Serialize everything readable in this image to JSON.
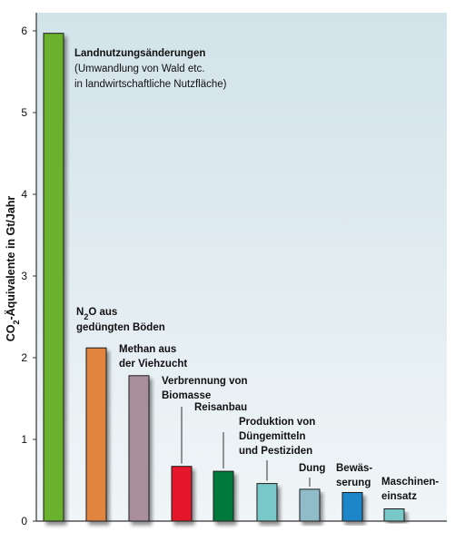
{
  "chart_data": {
    "type": "bar",
    "ylabel": "CO2-Äquivalente in Gt/Jahr",
    "ylim": [
      0,
      6
    ],
    "yticks": [
      "0",
      "1",
      "2",
      "3",
      "4",
      "5",
      "6"
    ],
    "grid": false,
    "legend": "none",
    "categories": [
      "Landnutzungsänderungen (Umwandlung von Wald etc. in landwirtschaftliche Nutzfläche)",
      "N2O aus gedüngten Böden",
      "Methan aus der Viehzucht",
      "Verbrennung von Biomasse",
      "Reisanbau",
      "Produktion von Düngemitteln und Pestiziden",
      "Dung",
      "Bewässerung",
      "Maschineneinsatz"
    ],
    "values": [
      5.97,
      2.12,
      1.78,
      0.67,
      0.61,
      0.46,
      0.39,
      0.35,
      0.15
    ],
    "colors": [
      "#6bb22e",
      "#e0843f",
      "#a88f9b",
      "#e5132c",
      "#007a3b",
      "#79c8c9",
      "#8fbcc8",
      "#1e86c9",
      "#79c8c9"
    ],
    "labels": [
      {
        "lines": [
          "Landnutzungsänderungen",
          "(Umwandlung von Wald etc.",
          "in landwirtschaftliche Nutzfläche)"
        ],
        "bold": [
          true,
          false,
          false
        ]
      },
      {
        "lines": [
          "N2O aus",
          "gedüngten Böden"
        ],
        "bold": [
          true,
          true
        ]
      },
      {
        "lines": [
          "Methan aus",
          "der Viehzucht"
        ],
        "bold": [
          true,
          true
        ]
      },
      {
        "lines": [
          "Verbrennung von",
          "Biomasse"
        ],
        "bold": [
          true,
          true
        ]
      },
      {
        "lines": [
          "Reisanbau"
        ],
        "bold": [
          true
        ]
      },
      {
        "lines": [
          "Produktion von",
          "Düngemitteln",
          "und Pestiziden"
        ],
        "bold": [
          true,
          true,
          true
        ]
      },
      {
        "lines": [
          "Dung"
        ],
        "bold": [
          true
        ]
      },
      {
        "lines": [
          "Bewäs-",
          "serung"
        ],
        "bold": [
          true,
          true
        ]
      },
      {
        "lines": [
          "Maschinen-",
          "einsatz"
        ],
        "bold": [
          true,
          true
        ]
      }
    ]
  }
}
